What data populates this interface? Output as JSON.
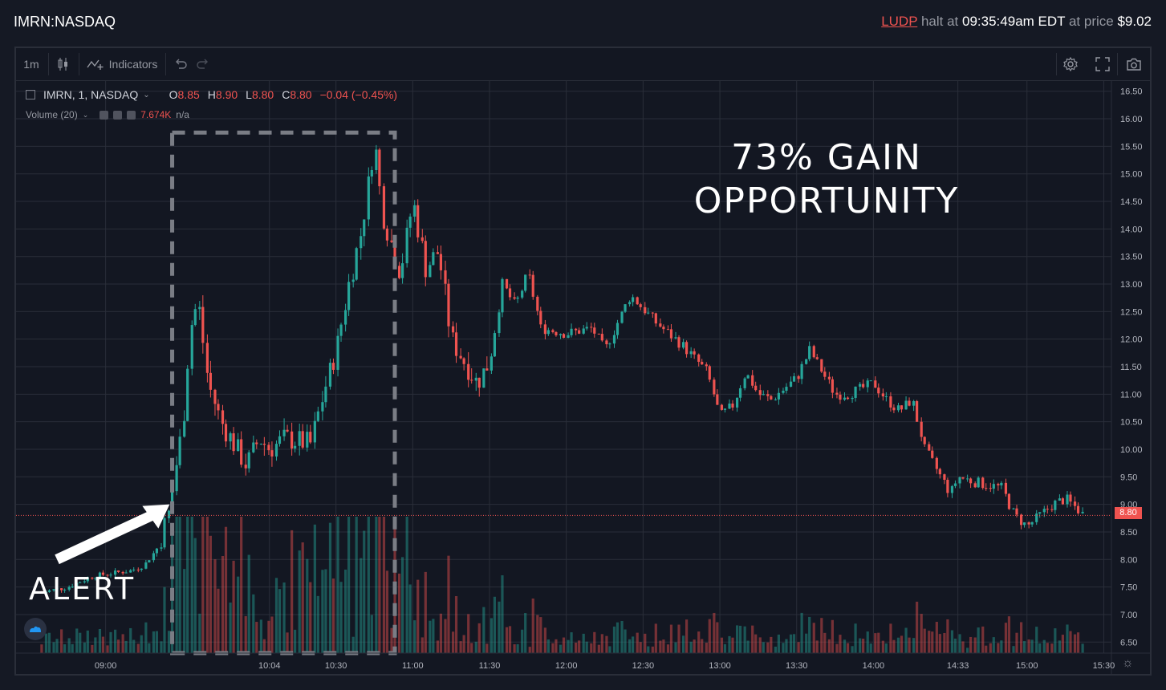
{
  "header": {
    "symbol": "IMRN:NASDAQ",
    "halt_symbol": "LUDP",
    "halt_text_1": "halt at",
    "halt_time": "09:35:49am EDT",
    "halt_text_2": "at price",
    "halt_price": "$9.02"
  },
  "toolbar": {
    "interval": "1m",
    "indicators_label": "Indicators"
  },
  "legend": {
    "title": "IMRN, 1, NASDAQ",
    "o_label": "O",
    "o_value": "8.85",
    "h_label": "H",
    "h_value": "8.90",
    "l_label": "L",
    "l_value": "8.80",
    "c_label": "C",
    "c_value": "8.80",
    "change": "−0.04 (−0.45%)",
    "volume_label": "Volume (20)",
    "volume_value": "7.674K",
    "volume_ma": "n/a"
  },
  "annotations": {
    "gain_line1": "73% GAIN",
    "gain_line2": "OPPORTUNITY",
    "alert": "ALERT"
  },
  "last_price_label": "8.80",
  "colors": {
    "up": "#26a69a",
    "down": "#ef5350",
    "background": "#131722",
    "grid": "#2a2e39"
  },
  "icons": [
    "candles-icon",
    "indicators-icon",
    "undo-icon",
    "redo-icon",
    "settings-icon",
    "fullscreen-icon",
    "camera-icon",
    "tradingview-logo"
  ],
  "chart_data": {
    "type": "candlestick",
    "ylim": [
      6.3,
      16.7
    ],
    "y_ticks": [
      "16.50",
      "16.00",
      "15.50",
      "15.00",
      "14.50",
      "14.00",
      "13.50",
      "13.00",
      "12.50",
      "12.00",
      "11.50",
      "11.00",
      "10.50",
      "10.00",
      "9.50",
      "9.00",
      "8.50",
      "8.00",
      "7.50",
      "7.00",
      "6.50"
    ],
    "x_ticks": [
      "09:00",
      "10:04",
      "10:30",
      "11:00",
      "11:30",
      "12:00",
      "12:30",
      "13:00",
      "13:30",
      "14:00",
      "14:33",
      "15:00",
      "15:30"
    ],
    "price_path": [
      [
        "08:35",
        7.4
      ],
      [
        "08:45",
        7.5
      ],
      [
        "08:55",
        7.7
      ],
      [
        "09:10",
        7.8
      ],
      [
        "09:15",
        7.9
      ],
      [
        "09:20",
        8.2
      ],
      [
        "09:25",
        8.9
      ],
      [
        "09:27",
        9.6
      ],
      [
        "09:30",
        10.4
      ],
      [
        "09:33",
        12.2
      ],
      [
        "09:36",
        12.7
      ],
      [
        "09:40",
        11.2
      ],
      [
        "09:45",
        10.5
      ],
      [
        "09:50",
        10.1
      ],
      [
        "09:55",
        9.7
      ],
      [
        "10:00",
        10.2
      ],
      [
        "10:04",
        10.0
      ],
      [
        "10:10",
        10.2
      ],
      [
        "10:20",
        10.1
      ],
      [
        "10:25",
        11.0
      ],
      [
        "10:30",
        11.8
      ],
      [
        "10:35",
        13.0
      ],
      [
        "10:40",
        14.0
      ],
      [
        "10:45",
        15.6
      ],
      [
        "10:48",
        14.3
      ],
      [
        "10:55",
        13.2
      ],
      [
        "11:00",
        14.5
      ],
      [
        "11:05",
        13.3
      ],
      [
        "11:10",
        13.6
      ],
      [
        "11:15",
        12.0
      ],
      [
        "11:20",
        11.6
      ],
      [
        "11:25",
        11.2
      ],
      [
        "11:30",
        11.6
      ],
      [
        "11:35",
        13.0
      ],
      [
        "11:40",
        12.6
      ],
      [
        "11:45",
        13.2
      ],
      [
        "11:50",
        12.2
      ],
      [
        "12:00",
        12.1
      ],
      [
        "12:10",
        12.2
      ],
      [
        "12:15",
        11.8
      ],
      [
        "12:20",
        12.3
      ],
      [
        "12:25",
        12.8
      ],
      [
        "12:35",
        12.3
      ],
      [
        "12:45",
        11.9
      ],
      [
        "12:55",
        11.4
      ],
      [
        "13:00",
        10.6
      ],
      [
        "13:05",
        10.8
      ],
      [
        "13:10",
        11.4
      ],
      [
        "13:15",
        11.0
      ],
      [
        "13:20",
        10.9
      ],
      [
        "13:30",
        11.3
      ],
      [
        "13:35",
        11.8
      ],
      [
        "13:40",
        11.4
      ],
      [
        "13:45",
        11.0
      ],
      [
        "13:50",
        11.0
      ],
      [
        "14:00",
        11.2
      ],
      [
        "14:05",
        10.9
      ],
      [
        "14:10",
        10.7
      ],
      [
        "14:15",
        10.9
      ],
      [
        "14:20",
        10.0
      ],
      [
        "14:25",
        9.6
      ],
      [
        "14:30",
        9.2
      ],
      [
        "14:33",
        9.5
      ],
      [
        "14:40",
        9.4
      ],
      [
        "14:50",
        9.3
      ],
      [
        "14:55",
        8.8
      ],
      [
        "15:00",
        8.6
      ],
      [
        "15:05",
        8.8
      ],
      [
        "15:10",
        9.0
      ],
      [
        "15:15",
        9.1
      ],
      [
        "15:20",
        8.9
      ],
      [
        "15:22",
        8.8
      ]
    ]
  }
}
